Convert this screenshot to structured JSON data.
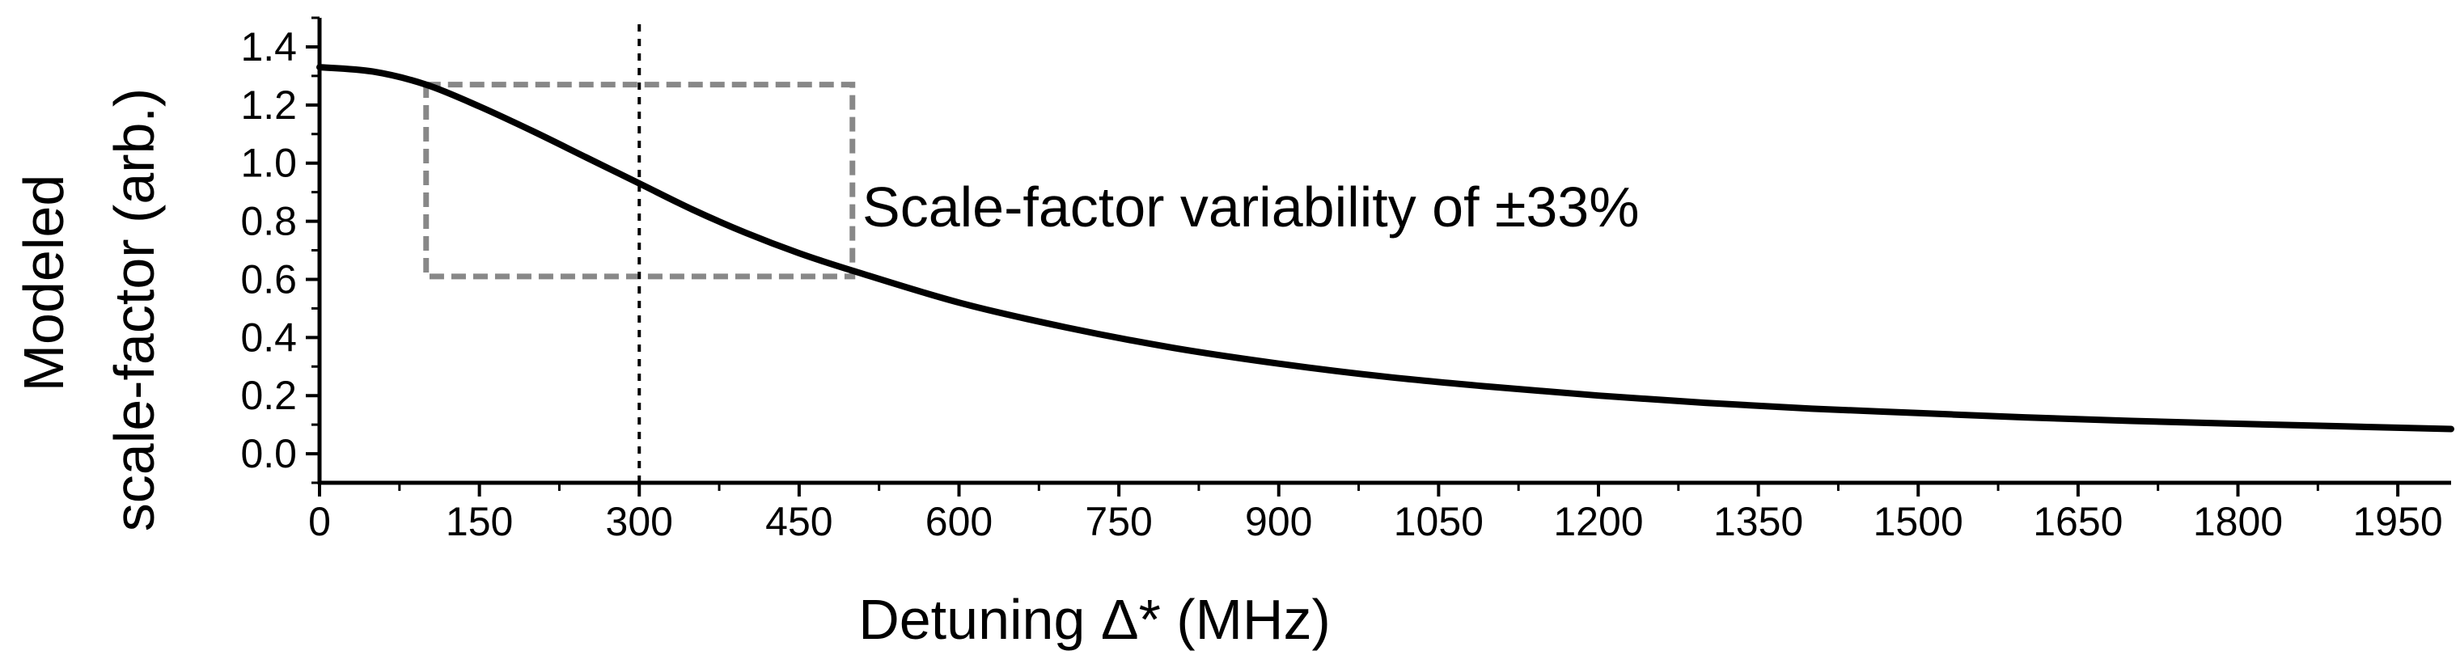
{
  "chart_data": {
    "type": "line",
    "title": "",
    "xlabel": "Detuning Δ* (MHz)",
    "ylabel_lines": [
      "Modeled",
      "scale-factor (arb.)"
    ],
    "xlim": [
      0,
      2000
    ],
    "ylim": [
      -0.1,
      1.5
    ],
    "xticks": [
      0,
      150,
      300,
      450,
      600,
      750,
      900,
      1050,
      1200,
      1350,
      1500,
      1650,
      1800,
      1950
    ],
    "yticks": [
      0.0,
      0.2,
      0.4,
      0.6,
      0.8,
      1.0,
      1.2,
      1.4
    ],
    "ytick_labels": [
      "0.0",
      "0.2",
      "0.4",
      "0.6",
      "0.8",
      "1.0",
      "1.2",
      "1.4"
    ],
    "grid": false,
    "series": [
      {
        "name": "Modeled scale-factor",
        "color": "#000000",
        "x": [
          0,
          50,
          100,
          150,
          200,
          250,
          300,
          350,
          400,
          450,
          500,
          600,
          700,
          800,
          900,
          1000,
          1100,
          1200,
          1300,
          1400,
          1500,
          1600,
          1700,
          1800,
          1900,
          2000
        ],
        "y": [
          1.33,
          1.315,
          1.27,
          1.195,
          1.11,
          1.02,
          0.93,
          0.84,
          0.76,
          0.69,
          0.63,
          0.52,
          0.435,
          0.365,
          0.31,
          0.265,
          0.23,
          0.2,
          0.175,
          0.155,
          0.14,
          0.125,
          0.113,
          0.103,
          0.094,
          0.085
        ]
      }
    ],
    "reference_line": {
      "x": 300,
      "style": "dotted",
      "color": "#000000"
    },
    "highlight_box": {
      "x0": 100,
      "x1": 500,
      "y0": 0.61,
      "y1": 1.27,
      "style": "dashed",
      "color": "#888888"
    },
    "annotation": "Scale-factor variability of ±33%"
  }
}
